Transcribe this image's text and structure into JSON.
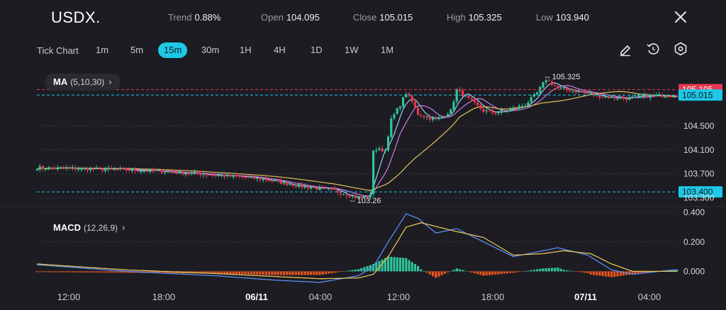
{
  "header": {
    "symbol": "USDX.",
    "stats": [
      {
        "key": "Trend",
        "value": "0.88%"
      },
      {
        "key": "Open",
        "value": "104.095"
      },
      {
        "key": "Close",
        "value": "105.015"
      },
      {
        "key": "High",
        "value": "105.325"
      },
      {
        "key": "Low",
        "value": "103.940"
      }
    ]
  },
  "toolbar": {
    "label": "Tick Chart",
    "timeframes": [
      "1m",
      "5m",
      "15m",
      "30m",
      "1H",
      "4H",
      "1D",
      "1W",
      "1M"
    ],
    "active_timeframe": "15m",
    "tools": [
      "pencil-icon",
      "reset-icon",
      "settings-icon"
    ]
  },
  "indicators": {
    "ma_label": "MA",
    "ma_params": "(5,10,30)",
    "macd_label": "MACD",
    "macd_params": "(12,26,9)"
  },
  "colors": {
    "background": "#1c1c22",
    "up": "#2fc59a",
    "down": "#e8374f",
    "ma5": "#9ad0ff",
    "ma10": "#d07be8",
    "ma30": "#e2c25a",
    "accent": "#1ec8e6",
    "macd_hist_up": "#2fc59a",
    "macd_hist_down": "#e5541f"
  },
  "chart_data": [
    {
      "type": "candlestick",
      "title": "USDX.",
      "interval": "15m",
      "ylim": [
        103.2,
        105.42
      ],
      "price_axis_ticks": [
        104.5,
        104.1,
        103.7,
        103.3
      ],
      "price_tags": [
        {
          "value": 105.105,
          "label": "105.105",
          "color": "#e8374f",
          "style": "dashed"
        },
        {
          "value": 105.015,
          "label": "105.015",
          "color": "#1ec8e6",
          "style": "dashed"
        },
        {
          "value": 103.4,
          "label": "103.400",
          "color": "#1ec8e6",
          "style": "dashed"
        }
      ],
      "annotations": [
        {
          "label": "105.325",
          "value": 105.325
        },
        {
          "label": "103.26",
          "value": 103.26
        }
      ],
      "x_ticks": [
        "12:00",
        "18:00",
        "06/11",
        "04:00",
        "12:00",
        "18:00",
        "07/11",
        "04:00"
      ],
      "bold_x_ticks": [
        "06/11",
        "07/11"
      ],
      "close_path": [
        [
          0,
          103.8
        ],
        [
          20,
          103.78
        ],
        [
          35,
          103.76
        ],
        [
          55,
          103.7
        ],
        [
          75,
          103.62
        ],
        [
          88,
          103.5
        ],
        [
          100,
          103.42
        ],
        [
          108,
          103.3
        ],
        [
          112,
          103.34
        ],
        [
          113,
          104.1
        ],
        [
          117,
          104.1
        ],
        [
          119,
          104.6
        ],
        [
          122,
          104.85
        ],
        [
          124,
          105.05
        ],
        [
          126,
          104.9
        ],
        [
          128,
          104.7
        ],
        [
          134,
          104.6
        ],
        [
          139,
          104.75
        ],
        [
          141,
          105.1
        ],
        [
          145,
          104.95
        ],
        [
          150,
          104.75
        ],
        [
          154,
          104.72
        ],
        [
          159,
          104.78
        ],
        [
          164,
          104.85
        ],
        [
          168,
          105.05
        ],
        [
          171,
          105.28
        ],
        [
          175,
          105.13
        ],
        [
          182,
          105.07
        ],
        [
          190,
          104.99
        ],
        [
          198,
          104.96
        ],
        [
          205,
          105.0
        ],
        [
          214,
          105.015
        ]
      ],
      "moving_averages": [
        {
          "name": "MA5",
          "period": 5
        },
        {
          "name": "MA10",
          "period": 10
        },
        {
          "name": "MA30",
          "period": 30
        }
      ]
    },
    {
      "type": "macd",
      "params": [
        12,
        26,
        9
      ],
      "ylim": [
        -0.08,
        0.42
      ],
      "y_ticks": [
        0.4,
        0.2,
        0.0
      ],
      "y_tick_labels": [
        "0.400",
        "0.200",
        "0.000"
      ],
      "macd_path": [
        [
          0,
          0.045
        ],
        [
          30,
          0.0
        ],
        [
          60,
          -0.03
        ],
        [
          80,
          -0.06
        ],
        [
          95,
          -0.075
        ],
        [
          108,
          -0.03
        ],
        [
          113,
          0.03
        ],
        [
          118,
          0.2
        ],
        [
          124,
          0.39
        ],
        [
          128,
          0.36
        ],
        [
          134,
          0.26
        ],
        [
          141,
          0.29
        ],
        [
          150,
          0.2
        ],
        [
          160,
          0.1
        ],
        [
          170,
          0.14
        ],
        [
          175,
          0.16
        ],
        [
          185,
          0.11
        ],
        [
          193,
          0.01
        ],
        [
          200,
          -0.02
        ],
        [
          214,
          0.01
        ]
      ],
      "signal_path": [
        [
          0,
          0.05
        ],
        [
          30,
          0.01
        ],
        [
          60,
          -0.015
        ],
        [
          80,
          -0.035
        ],
        [
          95,
          -0.05
        ],
        [
          108,
          -0.045
        ],
        [
          113,
          -0.02
        ],
        [
          118,
          0.1
        ],
        [
          124,
          0.3
        ],
        [
          129,
          0.33
        ],
        [
          135,
          0.3
        ],
        [
          141,
          0.27
        ],
        [
          150,
          0.23
        ],
        [
          160,
          0.11
        ],
        [
          170,
          0.12
        ],
        [
          177,
          0.14
        ],
        [
          186,
          0.12
        ],
        [
          193,
          0.05
        ],
        [
          200,
          0.0
        ],
        [
          214,
          0.0
        ]
      ]
    }
  ]
}
